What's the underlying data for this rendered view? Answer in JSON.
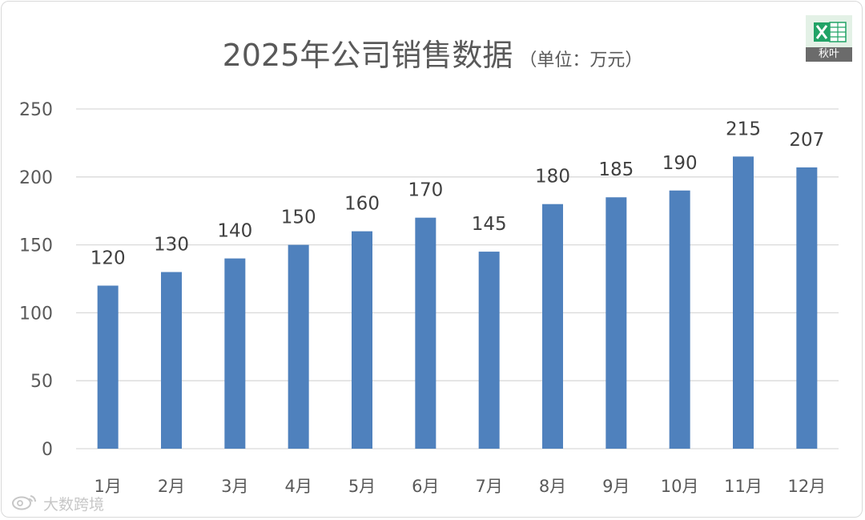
{
  "title": "2025年公司销售数据",
  "subtitle": "（单位：万元）",
  "logo_text": "秋叶",
  "watermark_text": "大数跨境",
  "colors": {
    "bar": "#4f81bd",
    "grid": "#d9d9d9",
    "text": "#595959",
    "logo_green": "#21a366"
  },
  "chart_data": {
    "type": "bar",
    "title": "2025年公司销售数据",
    "subtitle": "（单位：万元）",
    "categories": [
      "1月",
      "2月",
      "3月",
      "4月",
      "5月",
      "6月",
      "7月",
      "8月",
      "9月",
      "10月",
      "11月",
      "12月"
    ],
    "values": [
      120,
      130,
      140,
      150,
      160,
      170,
      145,
      180,
      185,
      190,
      215,
      207
    ],
    "yticks": [
      0,
      50,
      100,
      150,
      200,
      250
    ],
    "ylim": [
      0,
      250
    ],
    "grid": true,
    "data_labels": true,
    "legend": "none"
  }
}
